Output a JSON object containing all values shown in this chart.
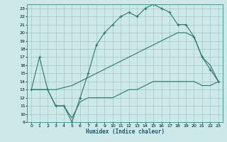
{
  "xlabel": "Humidex (Indice chaleur)",
  "xlim": [
    -0.5,
    23.5
  ],
  "ylim": [
    9,
    23.5
  ],
  "yticks": [
    9,
    10,
    11,
    12,
    13,
    14,
    15,
    16,
    17,
    18,
    19,
    20,
    21,
    22,
    23
  ],
  "xticks": [
    0,
    1,
    2,
    3,
    4,
    5,
    6,
    7,
    8,
    9,
    10,
    11,
    12,
    13,
    14,
    15,
    16,
    17,
    18,
    19,
    20,
    21,
    22,
    23
  ],
  "line_color": "#2a7a6a",
  "bg_color": "#cce8e8",
  "grid_color": "#9dbfbf",
  "line1_x": [
    0,
    1,
    2,
    3,
    4,
    5,
    6,
    7,
    8,
    9,
    10,
    11,
    12,
    13,
    14,
    15,
    16,
    17,
    18,
    19,
    20,
    21,
    22,
    23
  ],
  "line1_y": [
    13,
    17,
    13,
    11,
    11,
    9,
    12,
    15,
    18.5,
    20,
    21,
    22,
    22.5,
    22,
    23,
    23.5,
    23,
    22.5,
    21,
    21,
    19.5,
    17,
    15.5,
    14
  ],
  "line2_x": [
    0,
    1,
    2,
    3,
    5,
    6,
    7,
    8,
    9,
    10,
    11,
    12,
    13,
    14,
    15,
    16,
    17,
    18,
    19,
    20,
    21,
    22,
    23
  ],
  "line2_y": [
    13,
    13,
    13,
    13,
    13.5,
    14,
    14.5,
    15,
    15.5,
    16,
    16.5,
    17,
    17.5,
    18,
    18.5,
    19,
    19.5,
    20,
    20,
    19.5,
    17,
    16,
    14
  ],
  "line3_x": [
    0,
    1,
    2,
    3,
    4,
    5,
    6,
    7,
    8,
    9,
    10,
    11,
    12,
    13,
    14,
    15,
    16,
    17,
    18,
    19,
    20,
    21,
    22,
    23
  ],
  "line3_y": [
    13,
    13,
    13,
    11,
    11,
    9.5,
    11.5,
    12,
    12,
    12,
    12,
    12.5,
    13,
    13,
    13.5,
    14,
    14,
    14,
    14,
    14,
    14,
    13.5,
    13.5,
    14
  ]
}
